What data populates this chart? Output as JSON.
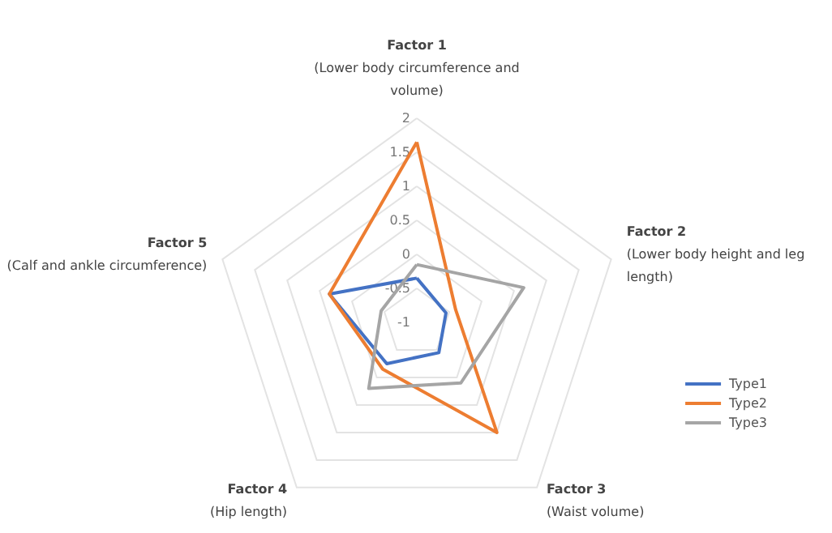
{
  "chart_data": {
    "type": "radar",
    "categories": [
      "Factor 1\n(Lower body circumference and\nvolume)",
      "Factor 2\n(Lower body height and leg\nlength)",
      "Factor 3\n(Waist volume)",
      "Factor 4\n(Hip length)",
      "Factor 5\n(Calf and ankle circumference)"
    ],
    "series": [
      {
        "name": "Type1",
        "color": "#4472c4",
        "values": [
          -0.35,
          -0.55,
          -0.45,
          -0.25,
          0.35
        ]
      },
      {
        "name": "Type2",
        "color": "#ed7d31",
        "values": [
          1.65,
          -0.4,
          1.0,
          -0.15,
          0.35
        ]
      },
      {
        "name": "Type3",
        "color": "#a5a5a5",
        "values": [
          -0.15,
          0.65,
          0.1,
          0.2,
          -0.45
        ]
      }
    ],
    "ylim": [
      -1,
      2
    ],
    "yticks": [
      -1,
      -0.5,
      0,
      0.5,
      1,
      1.5,
      2
    ],
    "grid": true,
    "legend": "right",
    "marker": "none",
    "line_style": "solid"
  }
}
